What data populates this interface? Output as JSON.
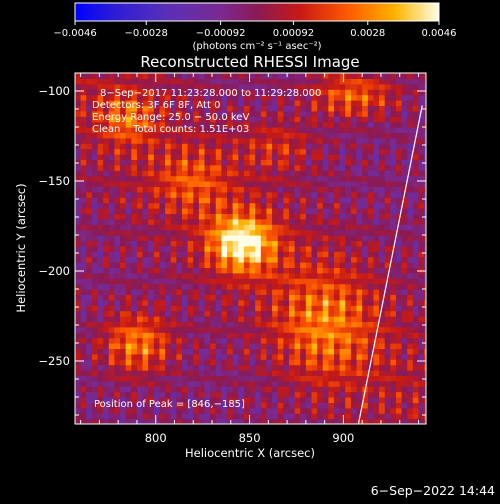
{
  "chart_data": {
    "type": "heatmap",
    "title": "Reconstructed RHESSI Image",
    "xlabel": "Heliocentric X (arcsec)",
    "ylabel": "Heliocentric Y (arcsec)",
    "xlim": [
      757,
      944
    ],
    "ylim": [
      -285,
      -90
    ],
    "x_ticks": [
      800,
      850,
      900
    ],
    "y_ticks": [
      -100,
      -150,
      -200,
      -250
    ],
    "x_tick_labels": [
      "800",
      "850",
      "900"
    ],
    "y_tick_labels": [
      "−100",
      "−150",
      "−200",
      "−250"
    ],
    "colorbar": {
      "range": [
        -0.0046,
        0.0046
      ],
      "ticks": [
        -0.0046,
        -0.0028,
        -0.00092,
        0.00092,
        0.0028,
        0.0046
      ],
      "tick_labels": [
        "−0.0046",
        "−0.0028",
        "−0.00092",
        "0.00092",
        "0.0028",
        "0.0046"
      ],
      "unit_label": "(photons cm⁻² s⁻¹ asec⁻²)"
    },
    "annotations": [
      "8−Sep−2017 11:23:28.000 to 11:29:28.000",
      "Detectors: 3F 6F 8F, Att 0",
      "Energy Range: 25.0 − 50.0 keV",
      "Clean    Total counts: 1.51E+03"
    ],
    "peak_label": "Position of Peak = [846,−185]",
    "peak": [
      846,
      -185
    ],
    "limb_line": [
      [
        908,
        -285
      ],
      [
        942,
        -108
      ]
    ],
    "sources": [
      {
        "x": 846,
        "y": -184,
        "amp": 0.0046,
        "sx": 12,
        "sy": 11
      },
      {
        "x": 790,
        "y": -240,
        "amp": 0.003,
        "sx": 13,
        "sy": 12
      },
      {
        "x": 785,
        "y": -115,
        "amp": 0.002,
        "sx": 11,
        "sy": 10
      },
      {
        "x": 905,
        "y": -102,
        "amp": 0.0026,
        "sx": 16,
        "sy": 9
      },
      {
        "x": 890,
        "y": -230,
        "amp": 0.0022,
        "sx": 18,
        "sy": 22
      },
      {
        "x": 820,
        "y": -150,
        "amp": 0.0016,
        "sx": 14,
        "sy": 12
      },
      {
        "x": 865,
        "y": -130,
        "amp": 0.0014,
        "sx": 14,
        "sy": 10
      }
    ]
  },
  "footer": {
    "date": "6−Sep−2022 14:44"
  }
}
